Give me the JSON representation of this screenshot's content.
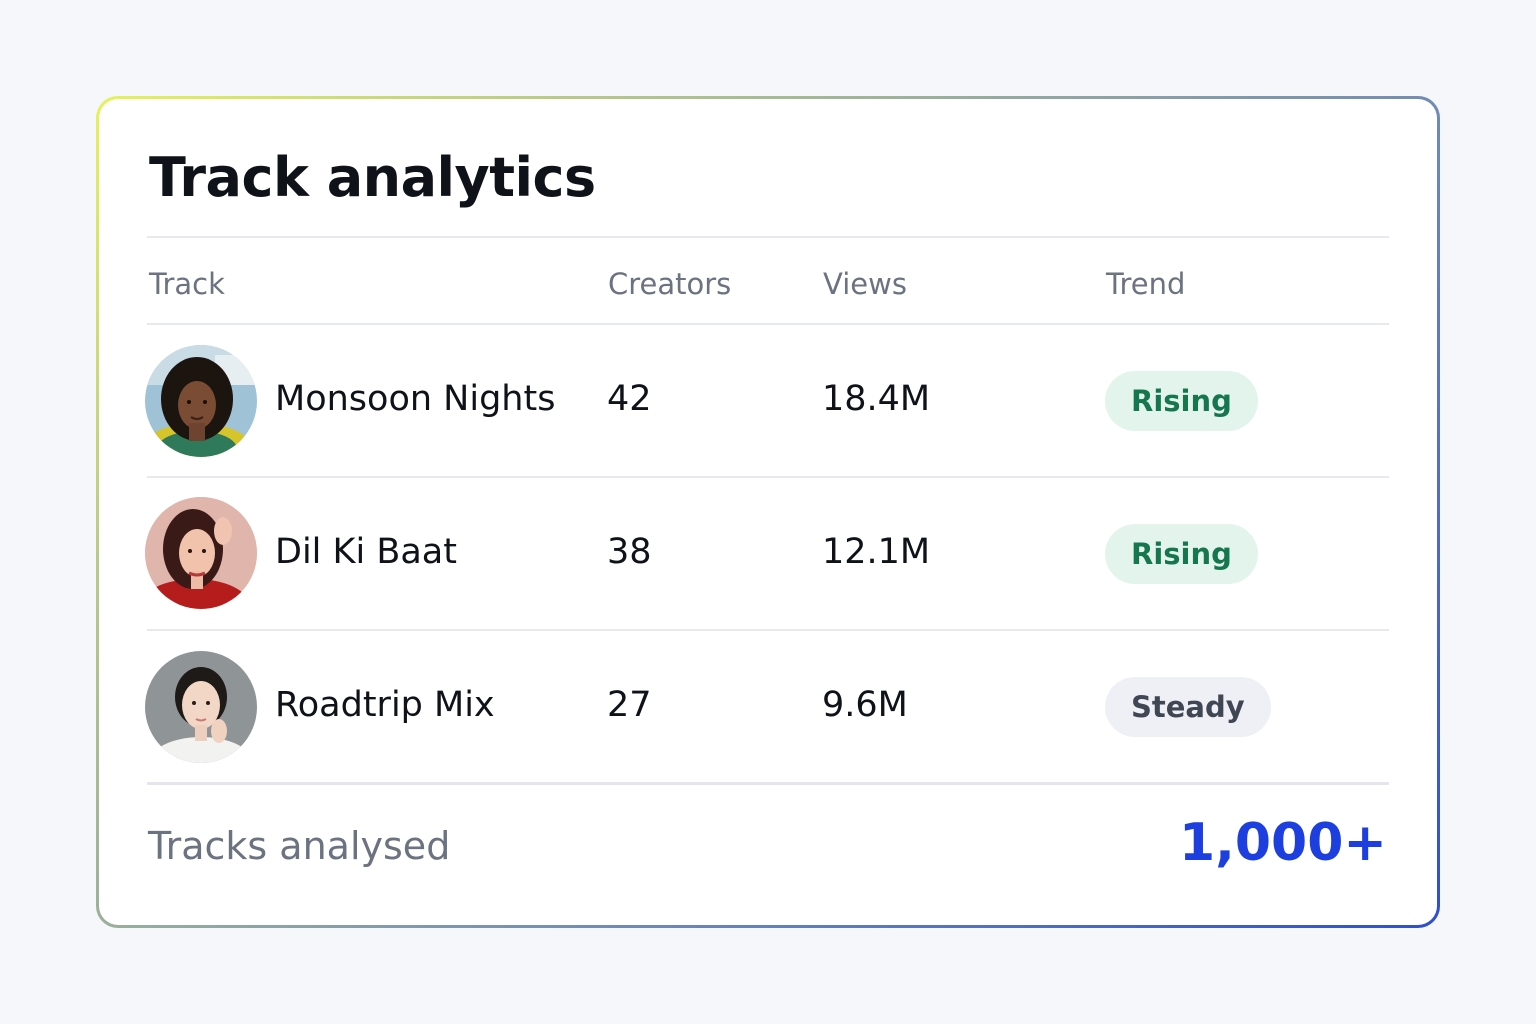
{
  "card": {
    "title": "Track analytics",
    "columns": {
      "track": "Track",
      "creators": "Creators",
      "views": "Views",
      "trend": "Trend"
    },
    "rows": [
      {
        "track": "Monsoon Nights",
        "creators": "42",
        "views": "18.4M",
        "trend": "Rising",
        "trend_style": "rising"
      },
      {
        "track": "Dil Ki Baat",
        "creators": "38",
        "views": "12.1M",
        "trend": "Rising",
        "trend_style": "rising"
      },
      {
        "track": "Roadtrip Mix",
        "creators": "27",
        "views": "9.6M",
        "trend": "Steady",
        "trend_style": "steady"
      }
    ],
    "footer": {
      "label": "Tracks analysed",
      "value": "1,000+"
    }
  },
  "colors": {
    "accent": "#1d3fe0",
    "rising_bg": "#e3f4ec",
    "rising_text": "#16774e",
    "steady_bg": "#eef0f5",
    "steady_text": "#3f4654"
  }
}
